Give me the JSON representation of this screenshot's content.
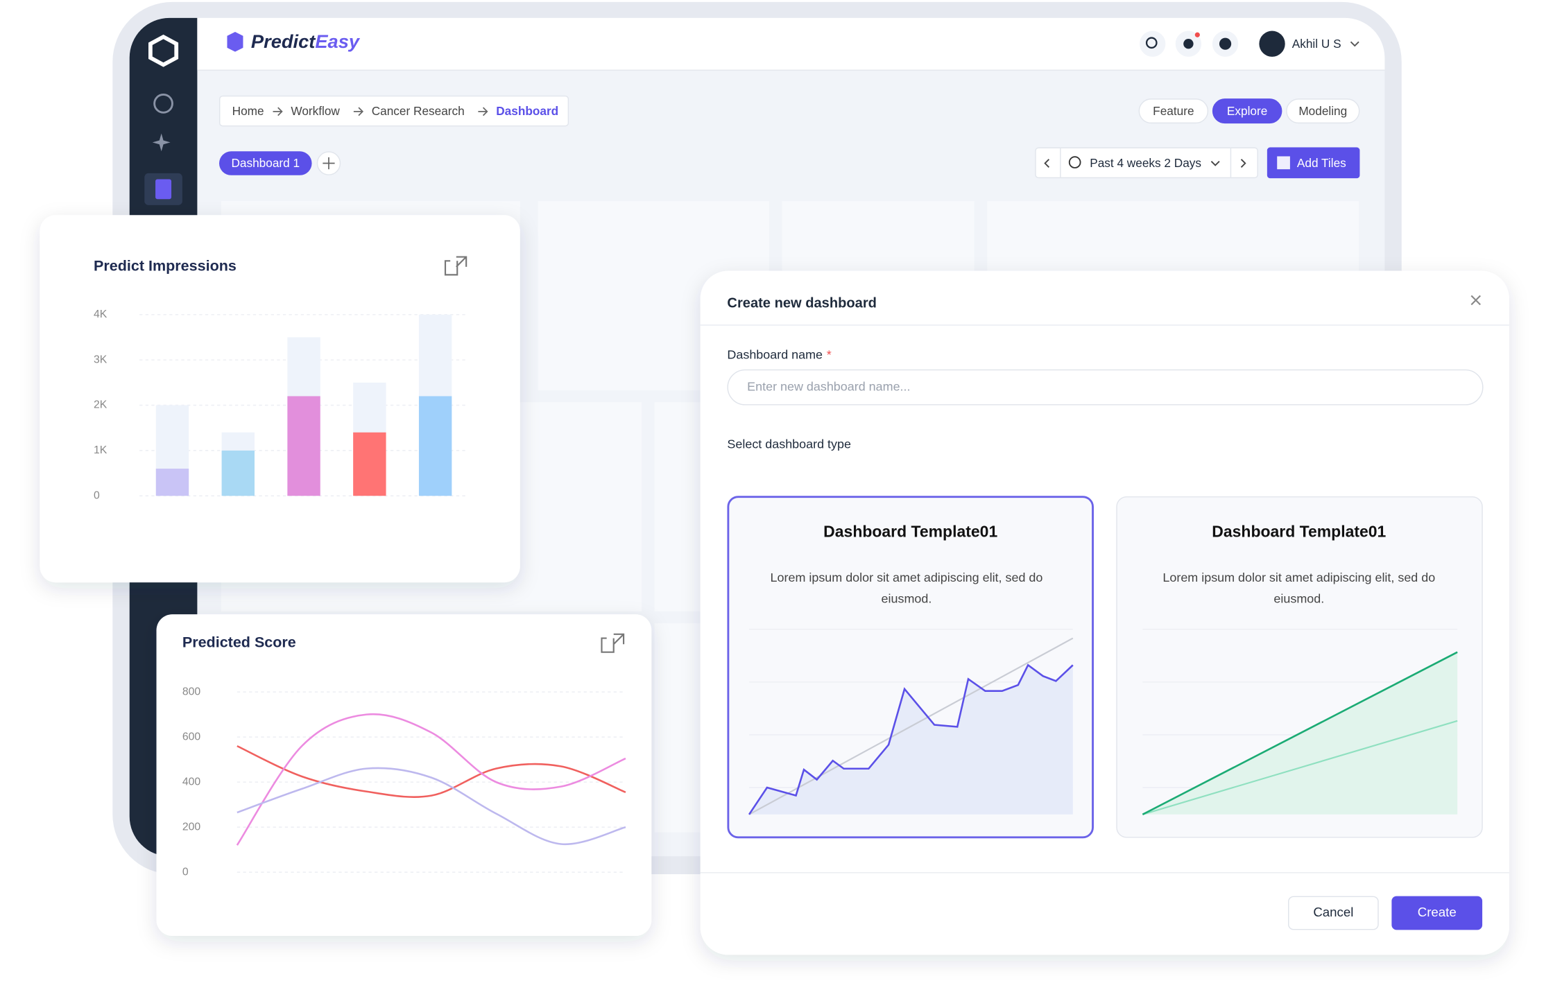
{
  "app": {
    "logo_main": "Predict",
    "logo_accent": "Easy",
    "user": "Akhil U S",
    "breadcrumbs": [
      "Home",
      "Workflow",
      "Cancer Research",
      "Dashboard"
    ],
    "tabs": [
      "Feature",
      "Explore",
      "Modeling"
    ],
    "dashboard_tab": "Dashboard 1",
    "date_range": "Past 4 weeks 2 Days",
    "add_tiles": "Add Tiles"
  },
  "chart_data": [
    {
      "type": "bar",
      "title": "Predict Impressions",
      "series": [
        {
          "colors": [
            "#eef3fb",
            "#eef3fb",
            "#eef3fb",
            "#eef3fb",
            "#eef3fb"
          ],
          "values": [
            2000,
            1400,
            3500,
            2500,
            4000
          ]
        },
        {
          "colors": [
            "#c9c4f6",
            "#a9d9f4",
            "#e28fdc",
            "#ff7474",
            "#9fd0fb"
          ],
          "values": [
            600,
            1000,
            2200,
            1400,
            2200
          ]
        }
      ],
      "ylim": [
        0,
        4000
      ],
      "yticks": [
        0,
        {
          "value": 1000,
          "label": "1K"
        },
        {
          "value": 2000,
          "label": "2K"
        },
        {
          "value": 3000,
          "label": "3K"
        },
        {
          "value": 4000,
          "label": "4K"
        }
      ],
      "grid": true
    },
    {
      "type": "line",
      "title": "Predicted Score",
      "series": [
        {
          "color": "#f0605e",
          "values": [
            560,
            425,
            358,
            340,
            460,
            470,
            355
          ]
        },
        {
          "color": "#ec8be0",
          "values": [
            120,
            560,
            700,
            620,
            400,
            380,
            505
          ]
        },
        {
          "color": "#bdb8ee",
          "values": [
            265,
            370,
            460,
            420,
            260,
            125,
            200
          ]
        }
      ],
      "ylim": [
        0,
        800
      ],
      "yticks": [
        0,
        200,
        400,
        600,
        800
      ],
      "grid": true
    }
  ],
  "modal": {
    "title": "Create new dashboard",
    "name_label": "Dashboard name",
    "required": "*",
    "placeholder": "Enter new dashboard name...",
    "type_label": "Select dashboard type",
    "templates": [
      {
        "title": "Dashboard Template01",
        "description": [
          "Lorem ipsum dolor sit amet adipiscing elit, sed do",
          "eiusmod."
        ]
      },
      {
        "title": "Dashboard Template01",
        "description": [
          "Lorem ipsum dolor sit amet adipiscing elit, sed do",
          "eiusmod."
        ]
      }
    ],
    "cancel": "Cancel",
    "create": "Create"
  }
}
